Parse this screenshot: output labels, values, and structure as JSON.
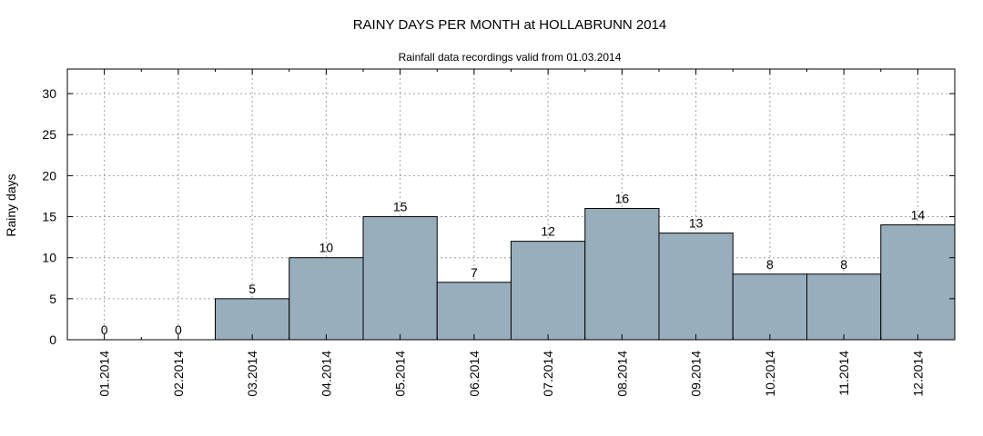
{
  "chart_data": {
    "type": "bar",
    "title": "RAINY DAYS PER MONTH at HOLLABRUNN 2014",
    "subtitle": "Rainfall data recordings valid from 01.03.2014",
    "xlabel": "",
    "ylabel": "Rainy days",
    "ylim": [
      0,
      33
    ],
    "yticks": [
      0,
      5,
      10,
      15,
      20,
      25,
      30
    ],
    "grid": true,
    "bar_color": "#98aebd",
    "categories": [
      "01.2014",
      "02.2014",
      "03.2014",
      "04.2014",
      "05.2014",
      "06.2014",
      "07.2014",
      "08.2014",
      "09.2014",
      "10.2014",
      "11.2014",
      "12.2014"
    ],
    "values": [
      0,
      0,
      5,
      10,
      15,
      7,
      12,
      16,
      13,
      8,
      8,
      14
    ]
  }
}
